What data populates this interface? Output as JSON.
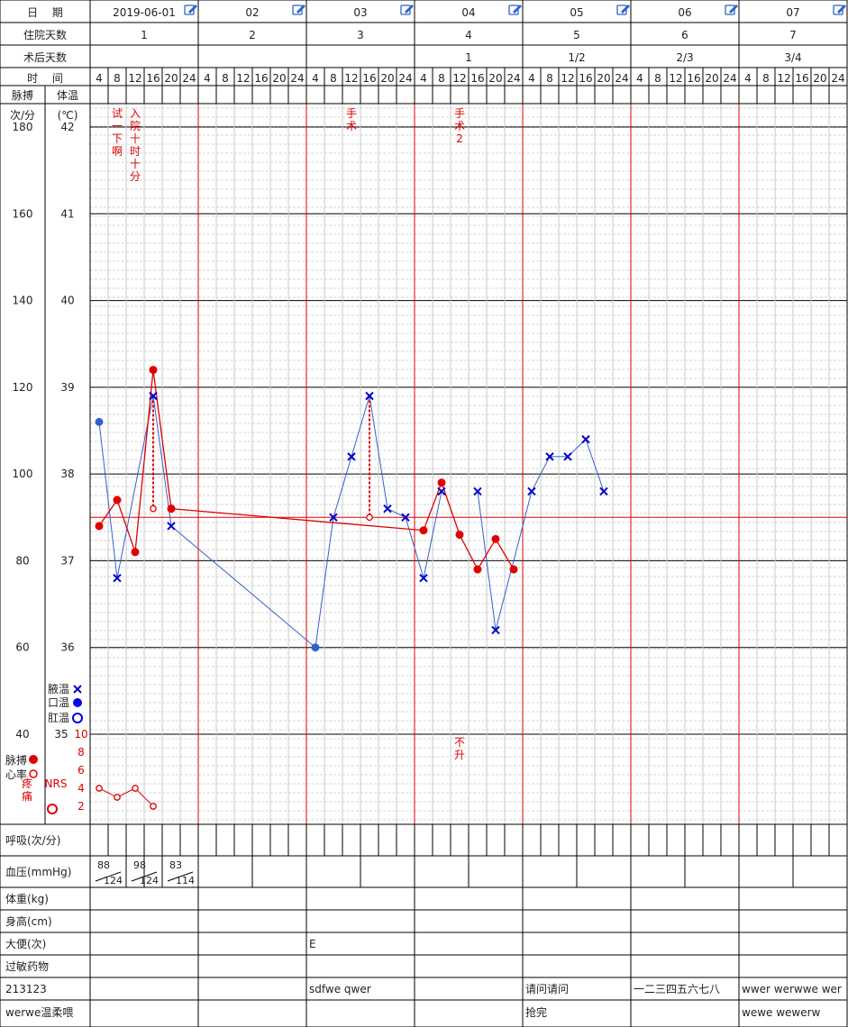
{
  "header": {
    "date_label": "日　 期",
    "inpatient_label": "住院天数",
    "postop_label": "术后天数",
    "time_label": "时　 间",
    "pulse_label": "脉搏",
    "temp_label": "体温",
    "pulse_unit": "次/分",
    "temp_unit": "(℃)"
  },
  "days": [
    {
      "date": "2019-06-01",
      "inpatient": "1",
      "postop": ""
    },
    {
      "date": "02",
      "inpatient": "2",
      "postop": ""
    },
    {
      "date": "03",
      "inpatient": "3",
      "postop": ""
    },
    {
      "date": "04",
      "inpatient": "4",
      "postop": "1"
    },
    {
      "date": "05",
      "inpatient": "5",
      "postop": "1/2"
    },
    {
      "date": "06",
      "inpatient": "6",
      "postop": "2/3"
    },
    {
      "date": "07",
      "inpatient": "7",
      "postop": "3/4"
    }
  ],
  "times": [
    "4",
    "8",
    "12",
    "16",
    "20",
    "24"
  ],
  "legend": {
    "axillary": "腋温",
    "oral": "口温",
    "rectal": "肛温",
    "pulse": "脉搏",
    "heart_rate": "心率",
    "pain_label": "疼痛",
    "nrs_label": "NRS"
  },
  "chart_data": {
    "type": "line",
    "x_label": "时间 (每日 4 8 12 16 20 24)",
    "pulse_axis": {
      "ticks": [
        "180",
        "160",
        "140",
        "120",
        "100",
        "80",
        "60",
        "40"
      ],
      "range": [
        40,
        180
      ]
    },
    "temp_axis": {
      "ticks": [
        "42",
        "41",
        "40",
        "39",
        "38",
        "37",
        "36",
        "35"
      ],
      "range": [
        35,
        42
      ]
    },
    "pain_axis": {
      "ticks": [
        "10",
        "8",
        "6",
        "4",
        "2"
      ],
      "range": [
        0,
        10
      ]
    },
    "reference_line_temp": 37.5,
    "annotations": [
      {
        "slot": 1,
        "text": "试一下啊"
      },
      {
        "slot": 2,
        "text": "入院十时十分"
      },
      {
        "slot": 14,
        "text": "手术"
      },
      {
        "slot": 20,
        "text": "手术2"
      },
      {
        "slot": 20,
        "text": "不升",
        "where": "bottom"
      }
    ],
    "series": [
      {
        "kind": "temperature",
        "points": [
          {
            "slot": 0,
            "t": 38.6,
            "site": "oral"
          },
          {
            "slot": 1,
            "t": 36.8,
            "site": "axillary"
          },
          {
            "slot": 3,
            "t": 38.9,
            "site": "axillary"
          },
          {
            "slot": 4,
            "t": 37.4,
            "site": "axillary"
          },
          {
            "slot": 12,
            "t": 36.0,
            "site": "oral"
          },
          {
            "slot": 13,
            "t": 37.5,
            "site": "axillary"
          },
          {
            "slot": 14,
            "t": 38.2,
            "site": "axillary"
          },
          {
            "slot": 15,
            "t": 38.9,
            "site": "axillary"
          },
          {
            "slot": 16,
            "t": 37.6,
            "site": "axillary"
          },
          {
            "slot": 17,
            "t": 37.5,
            "site": "axillary"
          },
          {
            "slot": 18,
            "t": 36.8,
            "site": "axillary"
          },
          {
            "slot": 19,
            "t": 37.8,
            "site": "axillary"
          },
          {
            "slot": 21,
            "t": 37.8,
            "site": "axillary",
            "break_before": true
          },
          {
            "slot": 22,
            "t": 36.2,
            "site": "axillary"
          },
          {
            "slot": 24,
            "t": 37.8,
            "site": "axillary"
          },
          {
            "slot": 25,
            "t": 38.2,
            "site": "axillary"
          },
          {
            "slot": 26,
            "t": 38.2,
            "site": "axillary"
          },
          {
            "slot": 27,
            "t": 38.4,
            "site": "axillary"
          },
          {
            "slot": 28,
            "t": 37.8,
            "site": "axillary"
          }
        ]
      },
      {
        "kind": "pulse",
        "points": [
          {
            "slot": 0,
            "v": 88
          },
          {
            "slot": 1,
            "v": 94
          },
          {
            "slot": 2,
            "v": 82
          },
          {
            "slot": 3,
            "v": 124
          },
          {
            "slot": 4,
            "v": 92
          },
          {
            "slot": 18,
            "v": 87
          },
          {
            "slot": 19,
            "v": 98
          },
          {
            "slot": 20,
            "v": 86
          },
          {
            "slot": 21,
            "v": 78
          },
          {
            "slot": 22,
            "v": 85
          },
          {
            "slot": 23,
            "v": 78
          }
        ]
      },
      {
        "kind": "heart_rate",
        "points": [
          {
            "slot": 3,
            "v": 92
          },
          {
            "slot": 15,
            "v": 90
          }
        ]
      },
      {
        "kind": "pain",
        "points": [
          {
            "slot": 0,
            "v": 4
          },
          {
            "slot": 1,
            "v": 3
          },
          {
            "slot": 2,
            "v": 4
          },
          {
            "slot": 3,
            "v": 2
          }
        ]
      }
    ]
  },
  "rows": {
    "respiration_label": "呼吸(次/分)",
    "bp_label": "血压(mmHg)",
    "weight_label": "体重(kg)",
    "height_label": "身高(cm)",
    "stool_label": "大便(次)",
    "allergy_label": "过敏药物",
    "custom1_label": "213123",
    "custom2_label": "werwe温柔喂"
  },
  "bp": [
    {
      "half": 0,
      "sys": "88",
      "dia": "124"
    },
    {
      "half": 1,
      "sys": "98",
      "dia": "124"
    },
    {
      "half": 2,
      "sys": "83",
      "dia": "114"
    }
  ],
  "stool": [
    "",
    "",
    "E",
    "",
    "",
    "",
    ""
  ],
  "custom1": [
    "",
    "",
    "sdfwe qwer",
    "",
    "请问请问",
    "一二三四五六七八",
    "wwer werwwe wer"
  ],
  "custom2": [
    "",
    "",
    "",
    "",
    "抢完",
    "",
    "wewe wewerw"
  ],
  "colors": {
    "red": "#e00000",
    "blue": "#3360d0",
    "axillary": "#0000cc",
    "grid": "#cccccc"
  }
}
